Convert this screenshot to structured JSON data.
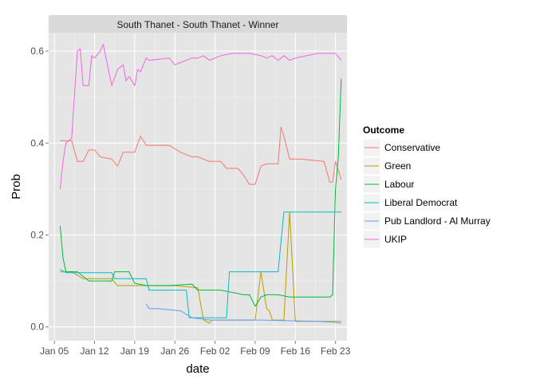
{
  "chart_data": {
    "type": "line",
    "title": "South Thanet - South Thanet - Winner",
    "xlabel": "date",
    "ylabel": "Prob",
    "xlim": [
      "2015-01-04",
      "2015-02-25"
    ],
    "ylim": [
      -0.03,
      0.64
    ],
    "x_ticks": [
      {
        "date": "2015-01-05",
        "label": "Jan 05"
      },
      {
        "date": "2015-01-12",
        "label": "Jan 12"
      },
      {
        "date": "2015-01-19",
        "label": "Jan 19"
      },
      {
        "date": "2015-01-26",
        "label": "Jan 26"
      },
      {
        "date": "2015-02-02",
        "label": "Feb 02"
      },
      {
        "date": "2015-02-09",
        "label": "Feb 09"
      },
      {
        "date": "2015-02-16",
        "label": "Feb 16"
      },
      {
        "date": "2015-02-23",
        "label": "Feb 23"
      }
    ],
    "y_ticks": [
      {
        "value": 0.0,
        "label": "0.0"
      },
      {
        "value": 0.2,
        "label": "0.2"
      },
      {
        "value": 0.4,
        "label": "0.4"
      },
      {
        "value": 0.6,
        "label": "0.6"
      }
    ],
    "grid": true,
    "legend": {
      "title": "Outcome",
      "position": "right"
    },
    "series": [
      {
        "name": "Conservative",
        "color": "#F8766D",
        "points": [
          [
            "2015-01-06",
            0.405
          ],
          [
            "2015-01-08",
            0.405
          ],
          [
            "2015-01-09",
            0.36
          ],
          [
            "2015-01-10",
            0.36
          ],
          [
            "2015-01-11",
            0.385
          ],
          [
            "2015-01-12",
            0.385
          ],
          [
            "2015-01-13",
            0.37
          ],
          [
            "2015-01-15",
            0.365
          ],
          [
            "2015-01-16",
            0.35
          ],
          [
            "2015-01-17",
            0.38
          ],
          [
            "2015-01-19",
            0.38
          ],
          [
            "2015-01-20",
            0.415
          ],
          [
            "2015-01-21",
            0.395
          ],
          [
            "2015-01-25",
            0.395
          ],
          [
            "2015-01-27",
            0.38
          ],
          [
            "2015-01-29",
            0.37
          ],
          [
            "2015-01-30",
            0.37
          ],
          [
            "2015-02-01",
            0.36
          ],
          [
            "2015-02-03",
            0.36
          ],
          [
            "2015-02-04",
            0.345
          ],
          [
            "2015-02-06",
            0.345
          ],
          [
            "2015-02-07",
            0.33
          ],
          [
            "2015-02-08",
            0.31
          ],
          [
            "2015-02-09",
            0.31
          ],
          [
            "2015-02-10",
            0.35
          ],
          [
            "2015-02-11",
            0.355
          ],
          [
            "2015-02-13",
            0.355
          ],
          [
            "2015-02-13T12:00",
            0.435
          ],
          [
            "2015-02-14",
            0.415
          ],
          [
            "2015-02-15",
            0.365
          ],
          [
            "2015-02-17",
            0.365
          ],
          [
            "2015-02-21",
            0.36
          ],
          [
            "2015-02-22",
            0.315
          ],
          [
            "2015-02-22T12:00",
            0.315
          ],
          [
            "2015-02-23",
            0.36
          ],
          [
            "2015-02-24",
            0.32
          ]
        ]
      },
      {
        "name": "Green",
        "color": "#B79F00",
        "points": [
          [
            "2015-01-06",
            0.12
          ],
          [
            "2015-01-08",
            0.12
          ],
          [
            "2015-01-10",
            0.105
          ],
          [
            "2015-01-15",
            0.105
          ],
          [
            "2015-01-16",
            0.09
          ],
          [
            "2015-01-19",
            0.09
          ],
          [
            "2015-01-21",
            0.09
          ],
          [
            "2015-01-26",
            0.09
          ],
          [
            "2015-01-30",
            0.085
          ],
          [
            "2015-01-31",
            0.015
          ],
          [
            "2015-02-01",
            0.008
          ],
          [
            "2015-02-01T12:00",
            0.015
          ],
          [
            "2015-02-04",
            0.015
          ],
          [
            "2015-02-09",
            0.015
          ],
          [
            "2015-02-10",
            0.12
          ],
          [
            "2015-02-11",
            0.04
          ],
          [
            "2015-02-11T12:00",
            0.035
          ],
          [
            "2015-02-12",
            0.015
          ],
          [
            "2015-02-14",
            0.015
          ],
          [
            "2015-02-15",
            0.25
          ],
          [
            "2015-02-16",
            0.012
          ],
          [
            "2015-02-22",
            0.012
          ],
          [
            "2015-02-24",
            0.012
          ]
        ]
      },
      {
        "name": "Labour",
        "color": "#00BA38",
        "points": [
          [
            "2015-01-06",
            0.22
          ],
          [
            "2015-01-06T12:00",
            0.15
          ],
          [
            "2015-01-07",
            0.12
          ],
          [
            "2015-01-09",
            0.12
          ],
          [
            "2015-01-11",
            0.1
          ],
          [
            "2015-01-15",
            0.1
          ],
          [
            "2015-01-15T12:00",
            0.12
          ],
          [
            "2015-01-18",
            0.12
          ],
          [
            "2015-01-19",
            0.095
          ],
          [
            "2015-01-21",
            0.09
          ],
          [
            "2015-01-25",
            0.09
          ],
          [
            "2015-01-29",
            0.093
          ],
          [
            "2015-01-30",
            0.08
          ],
          [
            "2015-02-03",
            0.08
          ],
          [
            "2015-02-07",
            0.07
          ],
          [
            "2015-02-08",
            0.07
          ],
          [
            "2015-02-09",
            0.045
          ],
          [
            "2015-02-10",
            0.065
          ],
          [
            "2015-02-11",
            0.07
          ],
          [
            "2015-02-13",
            0.07
          ],
          [
            "2015-02-15",
            0.065
          ],
          [
            "2015-02-22",
            0.065
          ],
          [
            "2015-02-22T12:00",
            0.07
          ],
          [
            "2015-02-23",
            0.3
          ],
          [
            "2015-02-23T12:00",
            0.37
          ],
          [
            "2015-02-24",
            0.54
          ]
        ]
      },
      {
        "name": "Liberal Democrat",
        "color": "#00BFC4",
        "points": [
          [
            "2015-01-06",
            0.125
          ],
          [
            "2015-01-07",
            0.118
          ],
          [
            "2015-01-15",
            0.118
          ],
          [
            "2015-01-15T12:00",
            0.105
          ],
          [
            "2015-01-21",
            0.105
          ],
          [
            "2015-01-21T12:00",
            0.08
          ],
          [
            "2015-01-28",
            0.08
          ],
          [
            "2015-01-28T12:00",
            0.02
          ],
          [
            "2015-02-04",
            0.02
          ],
          [
            "2015-02-04T12:00",
            0.12
          ],
          [
            "2015-02-13",
            0.12
          ],
          [
            "2015-02-14",
            0.25
          ],
          [
            "2015-02-23",
            0.25
          ],
          [
            "2015-02-24",
            0.25
          ]
        ]
      },
      {
        "name": "Pub Landlord - Al Murray",
        "color": "#619CFF",
        "points": [
          [
            "2015-01-21",
            0.05
          ],
          [
            "2015-01-21T12:00",
            0.04
          ],
          [
            "2015-01-23",
            0.04
          ],
          [
            "2015-01-27",
            0.035
          ],
          [
            "2015-01-29",
            0.02
          ],
          [
            "2015-02-01",
            0.015
          ],
          [
            "2015-02-04",
            0.015
          ],
          [
            "2015-02-10",
            0.015
          ],
          [
            "2015-02-20",
            0.012
          ],
          [
            "2015-02-23",
            0.01
          ],
          [
            "2015-02-24",
            0.008
          ]
        ]
      },
      {
        "name": "UKIP",
        "color": "#F564E3",
        "points": [
          [
            "2015-01-06",
            0.3
          ],
          [
            "2015-01-06T12:00",
            0.36
          ],
          [
            "2015-01-07",
            0.4
          ],
          [
            "2015-01-08",
            0.41
          ],
          [
            "2015-01-09",
            0.6
          ],
          [
            "2015-01-09T12:00",
            0.605
          ],
          [
            "2015-01-10",
            0.525
          ],
          [
            "2015-01-11",
            0.525
          ],
          [
            "2015-01-11T12:00",
            0.59
          ],
          [
            "2015-01-12",
            0.585
          ],
          [
            "2015-01-13",
            0.6
          ],
          [
            "2015-01-13T12:00",
            0.615
          ],
          [
            "2015-01-15",
            0.525
          ],
          [
            "2015-01-16",
            0.56
          ],
          [
            "2015-01-17",
            0.57
          ],
          [
            "2015-01-17T12:00",
            0.535
          ],
          [
            "2015-01-18",
            0.545
          ],
          [
            "2015-01-19",
            0.525
          ],
          [
            "2015-01-19T12:00",
            0.56
          ],
          [
            "2015-01-20",
            0.555
          ],
          [
            "2015-01-21",
            0.585
          ],
          [
            "2015-01-21T12:00",
            0.58
          ],
          [
            "2015-01-25",
            0.585
          ],
          [
            "2015-01-26",
            0.57
          ],
          [
            "2015-01-27",
            0.575
          ],
          [
            "2015-01-29",
            0.585
          ],
          [
            "2015-01-30",
            0.585
          ],
          [
            "2015-01-31",
            0.59
          ],
          [
            "2015-02-01",
            0.58
          ],
          [
            "2015-02-03",
            0.59
          ],
          [
            "2015-02-05",
            0.595
          ],
          [
            "2015-02-08",
            0.595
          ],
          [
            "2015-02-10",
            0.59
          ],
          [
            "2015-02-11",
            0.585
          ],
          [
            "2015-02-12",
            0.59
          ],
          [
            "2015-02-13",
            0.58
          ],
          [
            "2015-02-14",
            0.59
          ],
          [
            "2015-02-15",
            0.58
          ],
          [
            "2015-02-16",
            0.585
          ],
          [
            "2015-02-18",
            0.59
          ],
          [
            "2015-02-20",
            0.595
          ],
          [
            "2015-02-23",
            0.595
          ],
          [
            "2015-02-24",
            0.58
          ]
        ]
      }
    ]
  }
}
